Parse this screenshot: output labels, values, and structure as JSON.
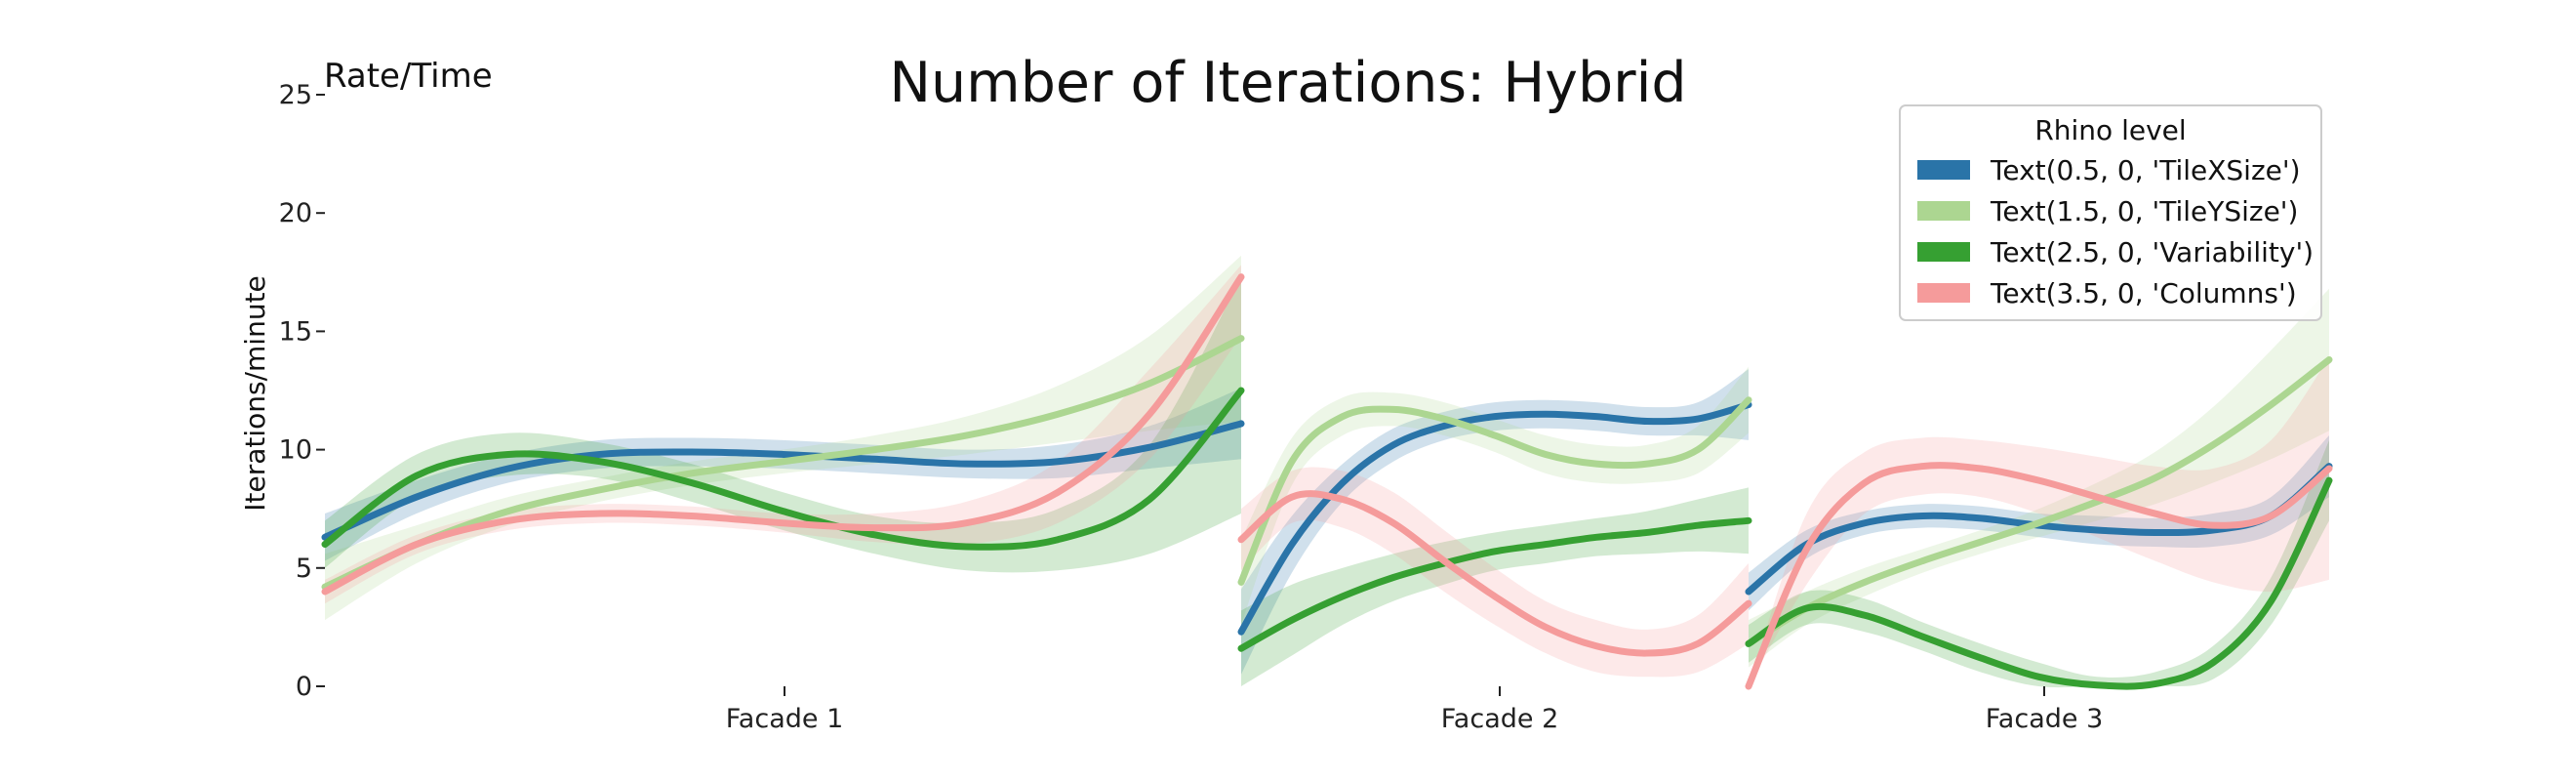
{
  "chart_data": {
    "type": "line",
    "title": "Number of Iterations: Hybrid",
    "subtitle": "Rate/Time",
    "ylabel": "Iterations/minute",
    "xlabel": "",
    "ylim": [
      0,
      25
    ],
    "y_ticks": [
      "0",
      "5",
      "10",
      "15",
      "20",
      "25"
    ],
    "categories": [
      "Facade 1",
      "Facade 2",
      "Facade 3"
    ],
    "legend": {
      "title": "Rhino level",
      "placement": "top-right",
      "entries": [
        "Text(0.5, 0, 'TileXSize')",
        "Text(1.5, 0, 'TileYSize')",
        "Text(2.5, 0, 'Variability')",
        "Text(3.5, 0, 'Columns')"
      ]
    },
    "series_colors": [
      "#2a74a8",
      "#acd691",
      "#36a032",
      "#f59b9b"
    ],
    "panels": [
      {
        "category": "Facade 1",
        "x_range": [
          0,
          1
        ],
        "series": [
          {
            "x": [
              0,
              0.1,
              0.2,
              0.3,
              0.4,
              0.5,
              0.6,
              0.7,
              0.8,
              0.9,
              1.0
            ],
            "y": [
              6.3,
              8.0,
              9.2,
              9.8,
              9.9,
              9.8,
              9.6,
              9.4,
              9.5,
              10.1,
              11.1
            ],
            "lower": [
              5.3,
              7.3,
              8.6,
              9.2,
              9.3,
              9.2,
              9.0,
              8.8,
              8.8,
              9.2,
              9.6
            ],
            "upper": [
              7.3,
              8.7,
              9.8,
              10.4,
              10.5,
              10.4,
              10.2,
              10.0,
              10.2,
              11.0,
              12.6
            ]
          },
          {
            "x": [
              0,
              0.1,
              0.2,
              0.3,
              0.4,
              0.5,
              0.6,
              0.7,
              0.8,
              0.9,
              1.0
            ],
            "y": [
              4.2,
              6.0,
              7.4,
              8.3,
              9.0,
              9.5,
              10.0,
              10.6,
              11.5,
              12.8,
              14.7
            ],
            "lower": [
              2.8,
              5.2,
              6.8,
              7.8,
              8.5,
              9.0,
              9.4,
              9.8,
              10.3,
              10.8,
              11.2
            ],
            "upper": [
              5.6,
              6.8,
              8.0,
              8.8,
              9.5,
              10.0,
              10.6,
              11.4,
              12.7,
              14.8,
              18.2
            ]
          },
          {
            "x": [
              0,
              0.1,
              0.2,
              0.3,
              0.4,
              0.5,
              0.6,
              0.7,
              0.8,
              0.9,
              1.0
            ],
            "y": [
              6.0,
              8.9,
              9.8,
              9.5,
              8.6,
              7.4,
              6.4,
              5.9,
              6.2,
              7.9,
              12.5
            ],
            "lower": [
              5.0,
              8.0,
              8.9,
              8.8,
              7.8,
              6.6,
              5.6,
              4.9,
              4.9,
              5.6,
              7.3
            ],
            "upper": [
              7.0,
              9.8,
              10.7,
              10.3,
              9.4,
              8.2,
              7.2,
              6.9,
              7.5,
              10.2,
              17.3
            ]
          },
          {
            "x": [
              0,
              0.1,
              0.2,
              0.3,
              0.4,
              0.5,
              0.6,
              0.7,
              0.8,
              0.9,
              1.0
            ],
            "y": [
              4.0,
              6.0,
              7.0,
              7.3,
              7.2,
              6.9,
              6.7,
              6.9,
              8.2,
              11.5,
              17.3
            ],
            "lower": [
              3.5,
              5.6,
              6.6,
              6.9,
              6.8,
              6.5,
              6.1,
              6.0,
              6.9,
              9.6,
              14.8
            ],
            "upper": [
              4.5,
              6.4,
              7.4,
              7.7,
              7.6,
              7.3,
              7.3,
              7.8,
              9.5,
              13.4,
              17.8
            ]
          }
        ]
      },
      {
        "category": "Facade 2",
        "x_range": [
          0,
          1
        ],
        "series": [
          {
            "x": [
              0,
              0.1,
              0.2,
              0.3,
              0.4,
              0.5,
              0.6,
              0.7,
              0.8,
              0.9,
              1.0
            ],
            "y": [
              2.3,
              6.0,
              8.6,
              10.2,
              11.0,
              11.4,
              11.5,
              11.4,
              11.2,
              11.3,
              11.9
            ],
            "lower": [
              0.5,
              4.8,
              7.8,
              9.5,
              10.4,
              10.8,
              10.9,
              10.8,
              10.6,
              10.6,
              10.4
            ],
            "upper": [
              4.1,
              7.2,
              9.4,
              10.9,
              11.6,
              12.0,
              12.1,
              12.0,
              11.8,
              12.0,
              13.4
            ]
          },
          {
            "x": [
              0,
              0.1,
              0.2,
              0.3,
              0.4,
              0.5,
              0.6,
              0.7,
              0.8,
              0.9,
              1.0
            ],
            "y": [
              4.4,
              9.5,
              11.4,
              11.7,
              11.3,
              10.6,
              9.8,
              9.4,
              9.4,
              10.0,
              12.1
            ],
            "lower": [
              2.6,
              8.5,
              10.6,
              11.0,
              10.6,
              9.9,
              9.0,
              8.6,
              8.6,
              9.0,
              10.7
            ],
            "upper": [
              6.2,
              10.5,
              12.2,
              12.4,
              12.0,
              11.3,
              10.6,
              10.2,
              10.2,
              11.0,
              13.5
            ]
          },
          {
            "x": [
              0,
              0.1,
              0.2,
              0.3,
              0.4,
              0.5,
              0.6,
              0.7,
              0.8,
              0.9,
              1.0
            ],
            "y": [
              1.6,
              2.8,
              3.8,
              4.6,
              5.2,
              5.7,
              6.0,
              6.3,
              6.5,
              6.8,
              7.0
            ],
            "lower": [
              0.0,
              1.3,
              2.6,
              3.6,
              4.3,
              4.9,
              5.2,
              5.5,
              5.6,
              5.7,
              5.6
            ],
            "upper": [
              3.2,
              4.3,
              5.0,
              5.6,
              6.1,
              6.5,
              6.8,
              7.1,
              7.4,
              7.9,
              8.4
            ]
          },
          {
            "x": [
              0,
              0.1,
              0.2,
              0.3,
              0.4,
              0.5,
              0.6,
              0.7,
              0.8,
              0.9,
              1.0
            ],
            "y": [
              6.2,
              8.0,
              7.9,
              6.9,
              5.3,
              3.8,
              2.5,
              1.7,
              1.4,
              1.8,
              3.5
            ],
            "lower": [
              4.9,
              6.9,
              6.7,
              5.6,
              4.0,
              2.6,
              1.4,
              0.6,
              0.4,
              0.6,
              1.8
            ],
            "upper": [
              7.5,
              9.1,
              9.1,
              8.2,
              6.6,
              5.0,
              3.6,
              2.8,
              2.4,
              3.0,
              5.2
            ]
          }
        ]
      },
      {
        "category": "Facade 3",
        "x_range": [
          0,
          1
        ],
        "series": [
          {
            "x": [
              0,
              0.1,
              0.2,
              0.3,
              0.4,
              0.5,
              0.6,
              0.7,
              0.8,
              0.9,
              1.0
            ],
            "y": [
              4.0,
              6.0,
              6.9,
              7.2,
              7.1,
              6.8,
              6.6,
              6.5,
              6.6,
              7.2,
              9.3
            ],
            "lower": [
              3.2,
              5.4,
              6.4,
              6.7,
              6.6,
              6.3,
              6.0,
              5.9,
              5.9,
              6.4,
              8.0
            ],
            "upper": [
              4.8,
              6.6,
              7.4,
              7.7,
              7.6,
              7.3,
              7.2,
              7.1,
              7.3,
              8.0,
              10.6
            ]
          },
          {
            "x": [
              0,
              0.1,
              0.2,
              0.3,
              0.4,
              0.5,
              0.6,
              0.7,
              0.8,
              0.9,
              1.0
            ],
            "y": [
              1.8,
              3.3,
              4.4,
              5.3,
              6.1,
              6.9,
              7.8,
              8.8,
              10.2,
              11.9,
              13.8
            ],
            "lower": [
              0.8,
              2.6,
              3.8,
              4.8,
              5.6,
              6.3,
              7.0,
              7.7,
              8.6,
              9.6,
              10.8
            ],
            "upper": [
              2.8,
              4.0,
              5.0,
              5.8,
              6.6,
              7.5,
              8.6,
              9.9,
              11.8,
              14.2,
              16.8
            ]
          },
          {
            "x": [
              0,
              0.1,
              0.2,
              0.3,
              0.4,
              0.5,
              0.6,
              0.7,
              0.8,
              0.9,
              1.0
            ],
            "y": [
              1.8,
              3.3,
              3.0,
              2.1,
              1.2,
              0.4,
              0.05,
              0.1,
              1.0,
              3.6,
              8.7
            ],
            "lower": [
              1.0,
              2.6,
              2.3,
              1.5,
              0.6,
              0.0,
              0.0,
              0.0,
              0.3,
              2.6,
              7.0
            ],
            "upper": [
              2.6,
              4.0,
              3.7,
              2.7,
              1.8,
              1.0,
              0.4,
              0.6,
              1.7,
              4.6,
              10.4
            ]
          },
          {
            "x": [
              0,
              0.1,
              0.2,
              0.3,
              0.4,
              0.5,
              0.6,
              0.7,
              0.8,
              0.9,
              1.0
            ],
            "y": [
              0.0,
              5.8,
              8.6,
              9.3,
              9.2,
              8.7,
              8.0,
              7.3,
              6.8,
              7.2,
              9.2
            ],
            "lower": [
              0.0,
              4.3,
              7.3,
              8.1,
              8.0,
              7.3,
              6.3,
              5.3,
              4.4,
              4.0,
              4.5
            ],
            "upper": [
              0.0,
              7.3,
              9.9,
              10.5,
              10.4,
              10.1,
              9.7,
              9.3,
              9.2,
              10.4,
              13.9
            ]
          }
        ]
      }
    ]
  }
}
